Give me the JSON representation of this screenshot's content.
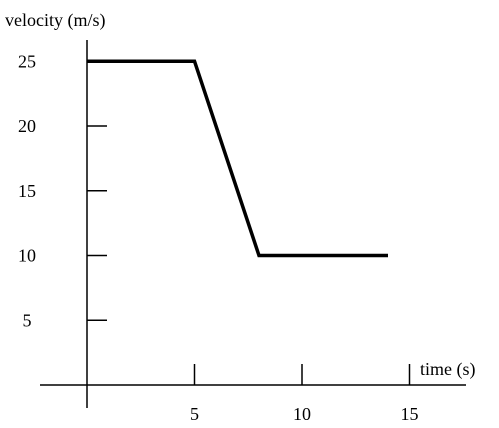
{
  "chart_data": {
    "type": "line",
    "title": "",
    "xlabel": "time (s)",
    "ylabel": "velocity (m/s)",
    "xlim": [
      0,
      15
    ],
    "ylim": [
      0,
      25
    ],
    "x_ticks": [
      5,
      10,
      15
    ],
    "x_tick_labels": [
      "5",
      "10",
      "15"
    ],
    "y_ticks": [
      5,
      10,
      15,
      20,
      25
    ],
    "y_tick_labels": [
      "5",
      "10",
      "15",
      "20",
      "25"
    ],
    "grid": false,
    "legend": "none",
    "series": [
      {
        "x": [
          0,
          5,
          8,
          14
        ],
        "y": [
          25,
          25,
          10,
          10
        ],
        "color": "#000000"
      }
    ]
  }
}
